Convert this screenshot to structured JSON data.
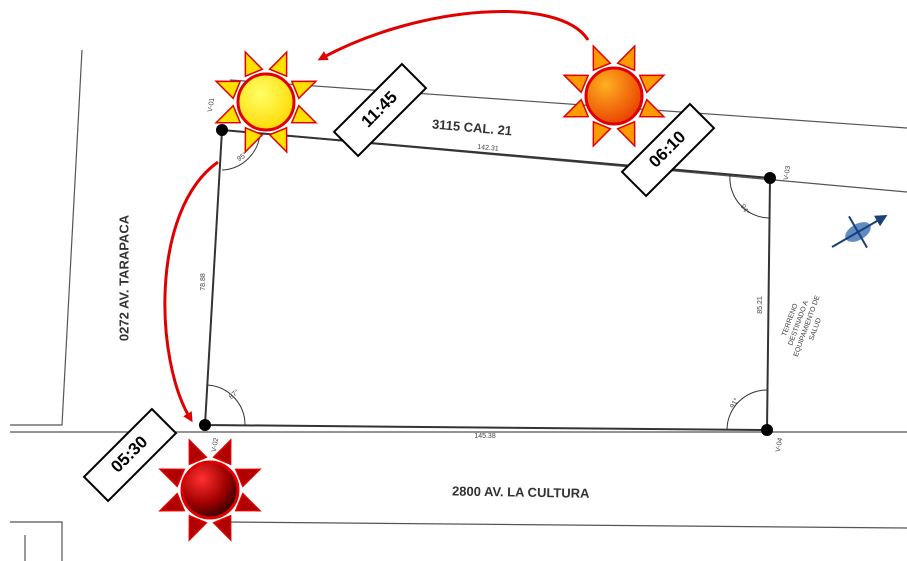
{
  "streets": {
    "top": "3115 CAL. 21",
    "left": "0272 AV. TARAPACA",
    "bottom": "2800 AV. LA CULTURA"
  },
  "times": [
    "11:45",
    "06:10",
    "05:30"
  ],
  "vertices": [
    "V-01",
    "V-03",
    "V-02",
    "V-04"
  ],
  "angles": [
    "95°",
    "94°",
    "87°",
    "91°"
  ],
  "lengths": [
    "142.31",
    "85.21",
    "145.38",
    "78.88"
  ],
  "lot_label": [
    "TERRENO",
    "DESTINADO A",
    "EQUIPAMIENTO DE",
    "SALUD"
  ]
}
